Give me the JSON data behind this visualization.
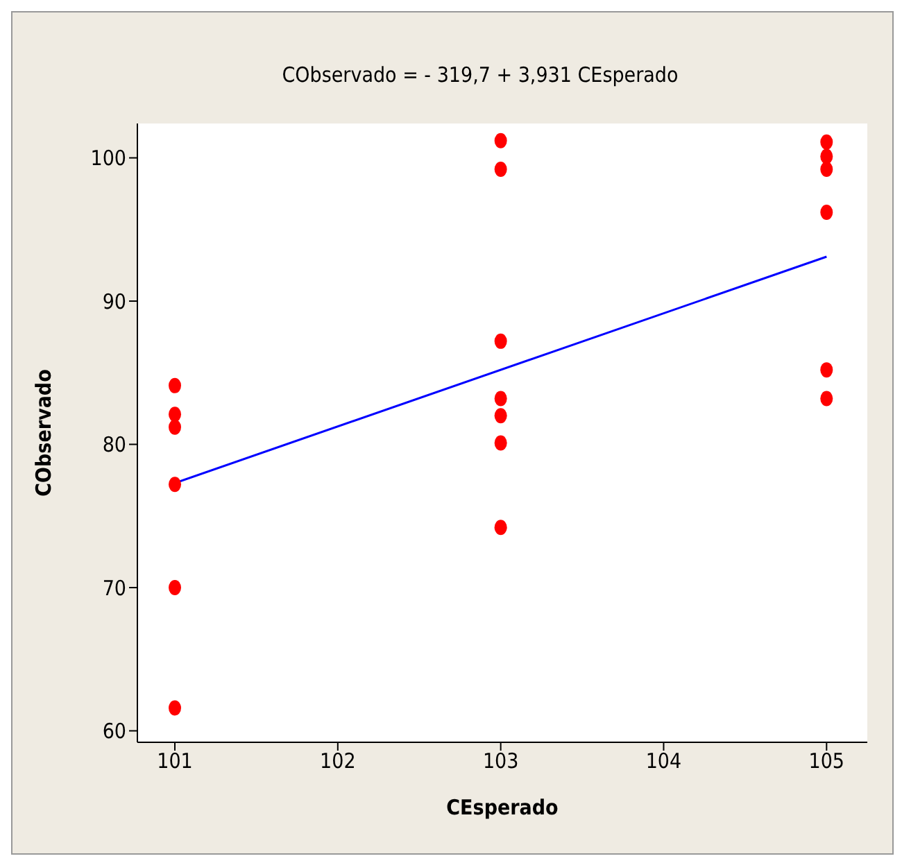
{
  "chart_data": {
    "type": "scatter",
    "title": "CObservado =  - 319,7 + 3,931 CEsperado",
    "xlabel": "CEsperado",
    "ylabel": "CObservado",
    "xlim": [
      100.77,
      105.25
    ],
    "xticks": [
      101,
      102,
      103,
      104,
      105
    ],
    "ylim": [
      59.2,
      102.4
    ],
    "yticks": [
      60,
      70,
      80,
      90,
      100
    ],
    "grid": false,
    "legend": false,
    "marker": "circle",
    "series": [
      {
        "color": "#ff0000",
        "x": [
          101,
          101,
          101,
          101,
          101,
          101,
          103,
          103,
          103,
          103,
          103,
          103,
          103,
          105,
          105,
          105,
          105,
          105,
          105
        ],
        "values": [
          84.1,
          82.1,
          81.2,
          77.2,
          70.0,
          61.6,
          101.2,
          99.2,
          87.2,
          83.2,
          82.0,
          80.1,
          74.2,
          101.1,
          100.1,
          99.2,
          96.2,
          85.2,
          83.2
        ]
      },
      {
        "type": "line",
        "color": "#0000ff",
        "marker": "none",
        "x": [
          101,
          105
        ],
        "values": [
          77.3,
          93.1
        ]
      }
    ]
  }
}
